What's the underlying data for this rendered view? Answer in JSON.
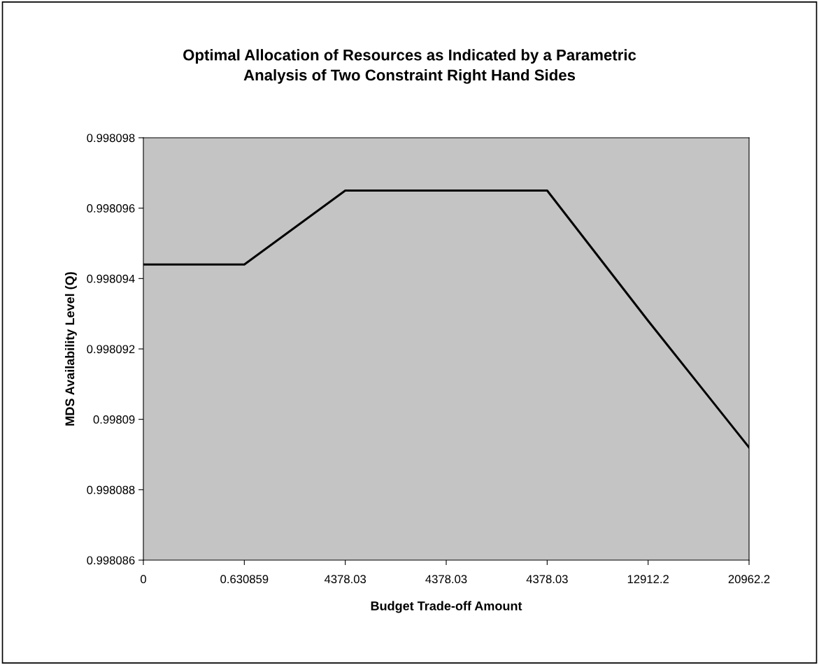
{
  "chart_data": {
    "type": "line",
    "title": "Optimal Allocation of Resources as Indicated by a Parametric\nAnalysis of Two Constraint Right Hand Sides",
    "xlabel": "Budget Trade-off Amount",
    "ylabel": "MDS Availability Level (Q)",
    "categories": [
      "0",
      "0.630859",
      "4378.03",
      "4378.03",
      "4378.03",
      "12912.2",
      "20962.2"
    ],
    "series": [
      {
        "color": "#000000",
        "values": [
          0.9980944,
          0.9980944,
          0.9980965,
          0.9980965,
          0.9980965,
          0.9980928,
          0.9980892
        ]
      }
    ],
    "ylim": [
      0.998086,
      0.998098
    ],
    "yticks": [
      {
        "value": 0.998086,
        "label": "0.998086"
      },
      {
        "value": 0.998088,
        "label": "0.998088"
      },
      {
        "value": 0.99809,
        "label": "0.99809"
      },
      {
        "value": 0.998092,
        "label": "0.998092"
      },
      {
        "value": 0.998094,
        "label": "0.998094"
      },
      {
        "value": 0.998096,
        "label": "0.998096"
      },
      {
        "value": 0.998098,
        "label": "0.998098"
      }
    ],
    "grid": false,
    "legend": false,
    "marker": "none",
    "line_style": "solid"
  }
}
